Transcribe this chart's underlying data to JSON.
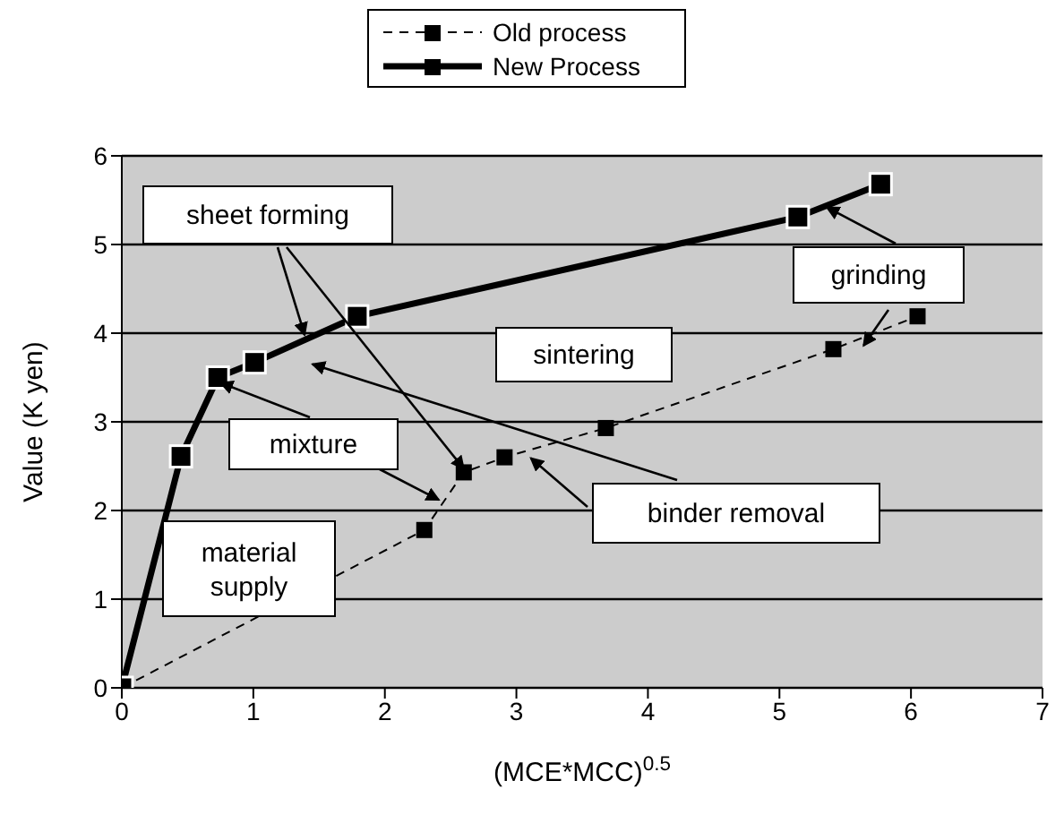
{
  "chart_data": {
    "type": "line",
    "xlabel": "(MCE*MCC)$^{0.5}$",
    "ylabel": "Value (K yen)",
    "xlim": [
      0,
      7
    ],
    "xticks": [
      0,
      1,
      2,
      3,
      4,
      5,
      6,
      7
    ],
    "ylim": [
      0,
      6
    ],
    "yticks": [
      0,
      1,
      2,
      3,
      4,
      5,
      6
    ],
    "grid": "y",
    "legend": "top",
    "marker": "square",
    "series": [
      {
        "name": "Old process",
        "color": "#000000",
        "line_style": "dashed",
        "x": [
          0,
          2.3,
          2.6,
          2.91,
          3.68,
          5.41,
          6.05
        ],
        "values": [
          0,
          1.78,
          2.43,
          2.6,
          2.93,
          3.82,
          4.19
        ]
      },
      {
        "name": "New Process",
        "color": "#000000",
        "line_style": "solid",
        "x": [
          0,
          0.45,
          0.73,
          1.01,
          1.79,
          5.14,
          5.77
        ],
        "values": [
          0,
          2.61,
          3.5,
          3.67,
          4.19,
          5.31,
          5.68
        ]
      }
    ],
    "annotations": [
      {
        "text": "sheet forming",
        "x": 1.39,
        "y": 3.98
      },
      {
        "text": "grinding",
        "x": 5.36,
        "y": 5.42
      },
      "sintering",
      {
        "text": "mixture",
        "x": 0.75,
        "y": 3.44
      },
      "binder removal",
      "material supply"
    ]
  }
}
